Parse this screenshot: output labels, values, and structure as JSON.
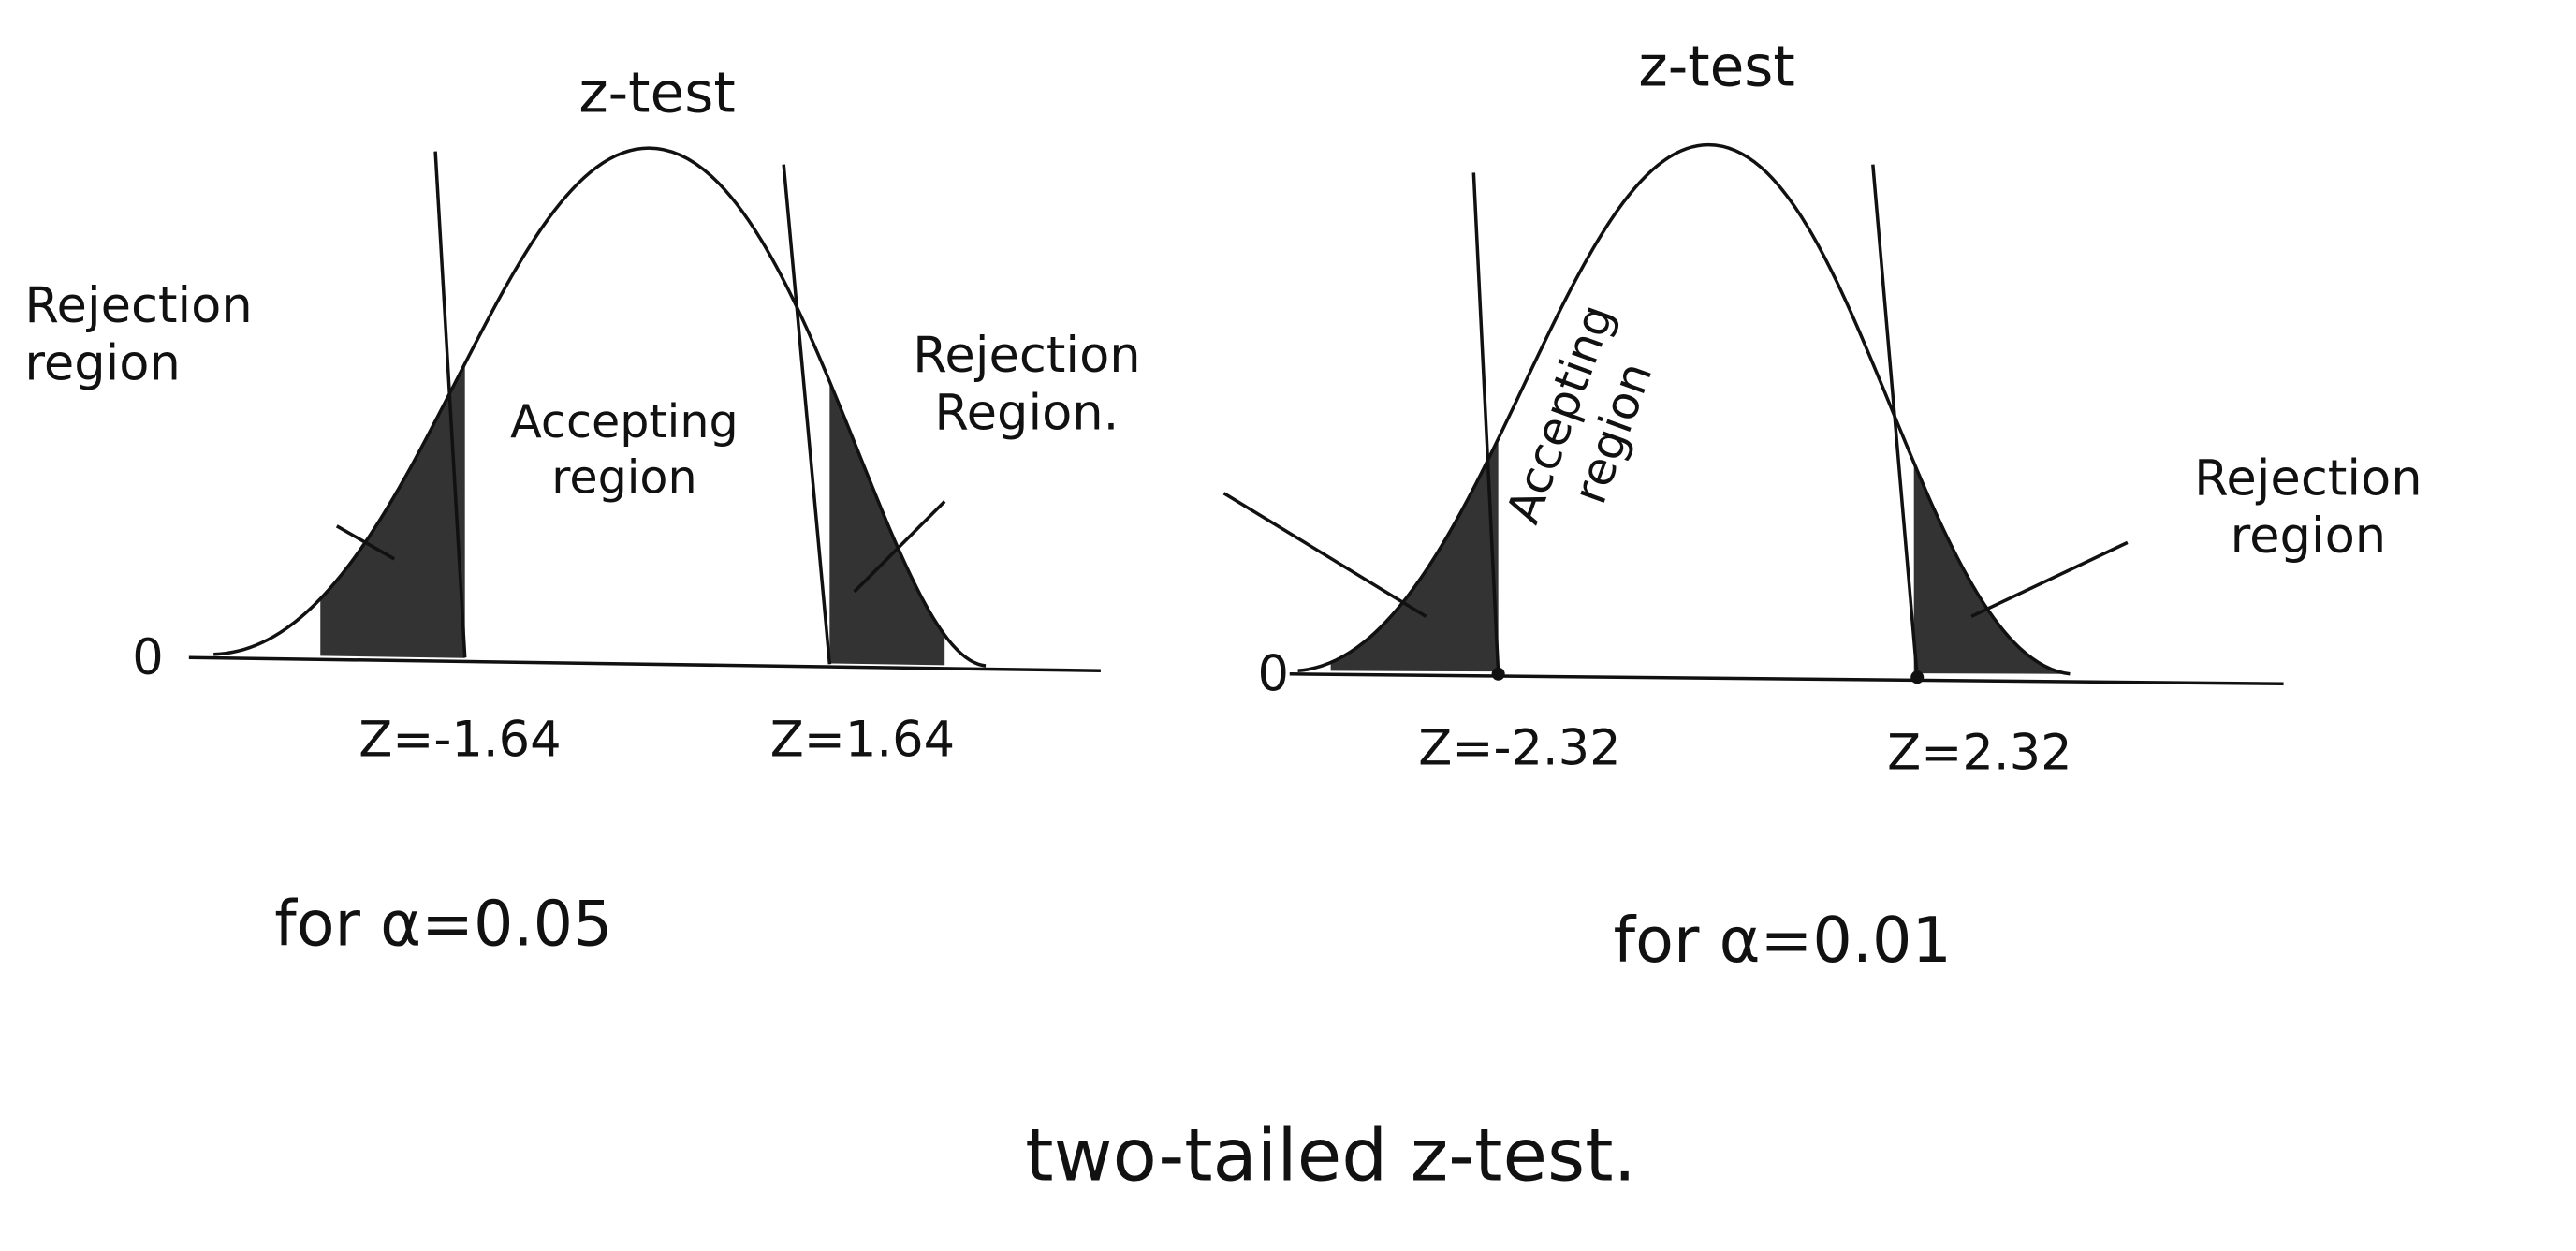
{
  "panels": [
    {
      "title": "z-test",
      "origin": "0",
      "left_label": "Rejection region",
      "middle_label": "Accepting region",
      "right_label": "Rejection Region.",
      "left_z": "Z=-1.64",
      "right_z": "Z=1.64",
      "caption": "for α=0.05"
    },
    {
      "title": "z-test",
      "origin": "0",
      "middle_label": "Accepting region",
      "right_label": "Rejection region",
      "left_z": "Z=-2.32",
      "right_z": "Z=2.32",
      "caption": "for α=0.01"
    }
  ],
  "footer": "two-tailed z-test."
}
